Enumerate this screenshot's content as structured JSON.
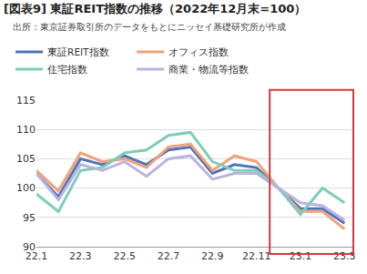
{
  "chart_data": {
    "type": "line",
    "title": "[図表9] 東証REIT指数の推移（2022年12月末=100）",
    "subtitle": "出所：東京証券取引所のデータをもとにニッセイ基礎研究所が作成",
    "categories": [
      "22.1",
      null,
      "22.3",
      null,
      "22.5",
      null,
      "22.7",
      null,
      "22.9",
      null,
      "22.11",
      null,
      "23.1",
      null,
      "23.3"
    ],
    "series": [
      {
        "name": "東証REIT指数",
        "color": "#4f72b8",
        "values": [
          102.5,
          98.5,
          105,
          104,
          105.5,
          104,
          106.5,
          107,
          102.5,
          104,
          103.5,
          100,
          96.5,
          96.5,
          94
        ]
      },
      {
        "name": "オフィス指数",
        "color": "#f0a27a",
        "values": [
          103,
          99.5,
          106,
          104.5,
          105,
          103.5,
          107,
          107.5,
          103,
          105.5,
          104.5,
          100,
          96,
          96,
          93
        ]
      },
      {
        "name": "住宅指数",
        "color": "#7ecdb8",
        "values": [
          99,
          96,
          103,
          103.5,
          106,
          106.5,
          109,
          109.5,
          104.5,
          103,
          103,
          100,
          95.5,
          100,
          97.5
        ]
      },
      {
        "name": "商業・物流等指数",
        "color": "#b9b3de",
        "values": [
          102.5,
          98,
          104,
          103,
          104.5,
          102,
          105,
          105.5,
          101.5,
          102.5,
          102.5,
          100,
          97.5,
          97,
          94.5
        ]
      }
    ],
    "ylim": [
      90,
      115
    ],
    "yticks": [
      90,
      95,
      100,
      105,
      110,
      115
    ],
    "grid": true,
    "legend": "top"
  }
}
